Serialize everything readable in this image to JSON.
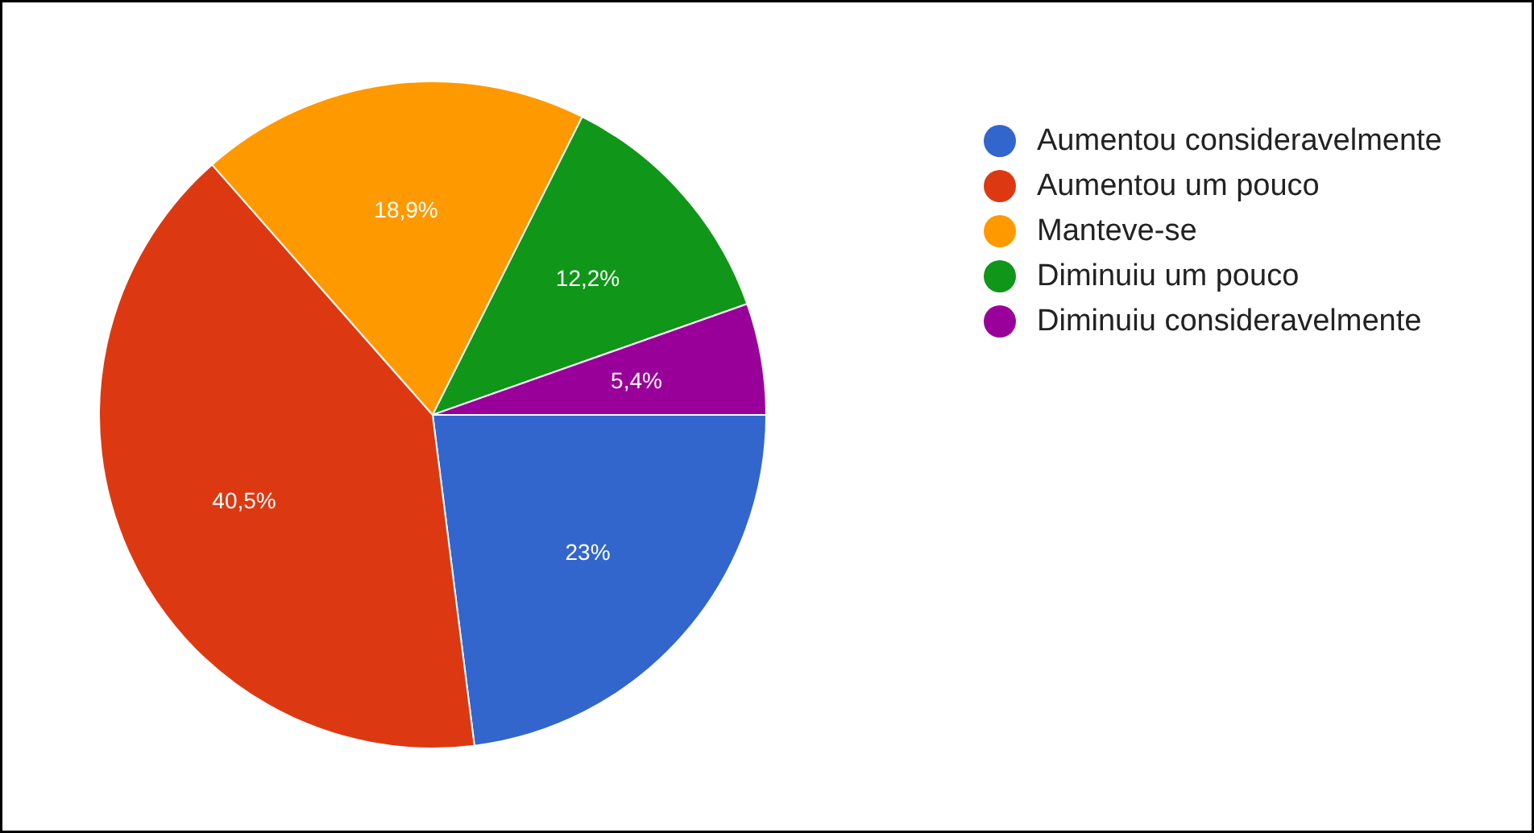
{
  "chart_data": {
    "type": "pie",
    "categories": [
      "Aumentou consideravelmente",
      "Aumentou um pouco",
      "Manteve-se",
      "Diminuiu um pouco",
      "Diminuiu consideravelmente"
    ],
    "values": [
      23,
      40.5,
      18.9,
      12.2,
      5.4
    ],
    "value_labels": [
      "23%",
      "40,5%",
      "18,9%",
      "12,2%",
      "5,4%"
    ],
    "colors": [
      "#3366cc",
      "#dc3912",
      "#ff9900",
      "#109618",
      "#990099"
    ],
    "legend": "right"
  }
}
